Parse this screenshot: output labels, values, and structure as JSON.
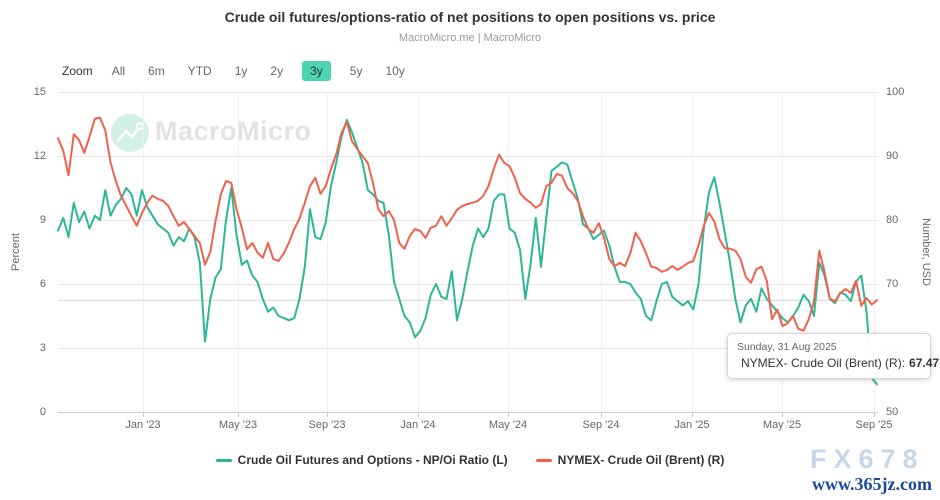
{
  "header": {
    "title": "Crude oil futures/options-ratio of net positions to open positions vs. price",
    "subtitle": "MacroMicro.me | MacroMicro"
  },
  "toolbar": {
    "zoom_label": "Zoom",
    "ranges": [
      "All",
      "6m",
      "YTD",
      "1y",
      "2y",
      "3y",
      "5y",
      "10y"
    ],
    "selected": "3y",
    "selected_bg": "#4ed3b2"
  },
  "watermark": {
    "text": "MacroMicro"
  },
  "chart_data": {
    "type": "line",
    "title": "Crude oil futures/options-ratio of net positions to open positions vs. price",
    "x_axis": {
      "tick_labels": [
        "Jan '23",
        "May '23",
        "Sep '23",
        "Jan '24",
        "May '24",
        "Sep '24",
        "Jan '25",
        "May '25",
        "Sep '25"
      ],
      "tick_x": [
        143,
        238,
        327,
        418,
        508,
        601,
        692,
        782,
        874
      ],
      "range_note": "weekly points, Sep 2022 - Aug 2025"
    },
    "y_left": {
      "label": "Percent",
      "range": [
        0,
        15
      ],
      "ticks": [
        0,
        3,
        6,
        9,
        12,
        15
      ],
      "tick_labels": [
        "15",
        "12",
        "9",
        "6",
        "3",
        "0"
      ]
    },
    "y_right": {
      "label": "Number, USD",
      "range": [
        50,
        100
      ],
      "ticks": [
        50,
        60,
        70,
        80,
        90,
        100
      ],
      "tick_labels": [
        "100",
        "90",
        "80",
        "70",
        "60",
        "50"
      ]
    },
    "crosshair_value_right": 67.47,
    "grid": true,
    "legend_position": "bottom",
    "series": [
      {
        "name": "Crude Oil Futures and Options - NP/Oi Ratio (L)",
        "axis": "left",
        "color": "#2eb794",
        "values": [
          8.5,
          9.1,
          8.2,
          9.8,
          8.9,
          9.4,
          8.6,
          9.2,
          9.0,
          10.4,
          9.2,
          9.7,
          10.0,
          10.5,
          10.2,
          9.2,
          10.4,
          9.6,
          9.2,
          8.8,
          8.6,
          8.4,
          7.8,
          8.2,
          8.0,
          8.6,
          8.2,
          7.0,
          3.3,
          5.3,
          6.3,
          6.7,
          9.0,
          10.5,
          8.3,
          6.9,
          7.1,
          6.4,
          6.1,
          5.3,
          4.7,
          4.9,
          4.5,
          4.4,
          4.3,
          4.4,
          5.3,
          6.8,
          9.5,
          8.2,
          8.1,
          8.9,
          10.6,
          11.7,
          12.9,
          13.7,
          13.1,
          12.4,
          11.7,
          10.4,
          10.2,
          9.9,
          9.8,
          8.3,
          6.1,
          5.3,
          4.5,
          4.2,
          3.5,
          3.8,
          4.4,
          5.5,
          6.0,
          5.4,
          5.3,
          6.6,
          4.3,
          5.3,
          6.6,
          7.8,
          8.6,
          8.2,
          8.6,
          9.9,
          10.2,
          10.2,
          8.6,
          8.4,
          7.6,
          5.3,
          6.9,
          9.1,
          6.8,
          9.1,
          11.3,
          11.5,
          11.7,
          11.6,
          10.8,
          10.0,
          8.8,
          8.6,
          8.1,
          8.3,
          8.5,
          7.8,
          6.8,
          6.1,
          6.1,
          6.0,
          5.6,
          5.3,
          4.5,
          4.3,
          5.2,
          6.0,
          6.1,
          5.4,
          5.2,
          5.0,
          5.2,
          4.8,
          6.0,
          8.6,
          10.3,
          11.0,
          9.8,
          8.4,
          7.0,
          5.3,
          4.2,
          5.0,
          5.3,
          4.7,
          5.8,
          5.3,
          5.0,
          4.7,
          4.4,
          4.2,
          4.5,
          4.9,
          5.5,
          5.2,
          4.5,
          7.0,
          6.4,
          5.3,
          5.1,
          5.6,
          5.5,
          5.2,
          6.1,
          6.4,
          4.7,
          1.6,
          1.3
        ]
      },
      {
        "name": "NYMEX- Crude Oil (Brent) (R)",
        "axis": "right",
        "color": "#f0624c",
        "values": [
          92.8,
          90.8,
          87.0,
          93.4,
          92.5,
          90.5,
          93.0,
          95.8,
          96.0,
          94.0,
          89.0,
          86.1,
          83.8,
          82.2,
          80.6,
          79.1,
          81.1,
          82.7,
          83.8,
          83.3,
          83.0,
          82.2,
          80.6,
          79.1,
          79.7,
          78.6,
          77.5,
          76.4,
          73.0,
          75.0,
          79.8,
          84.0,
          86.1,
          85.8,
          81.7,
          78.8,
          75.4,
          76.4,
          74.9,
          74.1,
          76.4,
          73.9,
          73.6,
          74.8,
          76.5,
          78.6,
          80.2,
          82.7,
          85.3,
          86.6,
          84.1,
          85.3,
          88.0,
          90.3,
          93.6,
          95.3,
          92.3,
          91.1,
          90.0,
          88.9,
          85.8,
          81.7,
          80.6,
          81.4,
          80.0,
          76.4,
          75.5,
          77.5,
          78.6,
          78.3,
          77.2,
          78.8,
          79.1,
          80.6,
          79.1,
          80.3,
          81.6,
          82.2,
          82.5,
          82.7,
          83.0,
          83.8,
          85.3,
          88.0,
          90.2,
          88.9,
          88.4,
          86.6,
          84.2,
          83.3,
          82.7,
          81.9,
          82.5,
          85.3,
          85.8,
          87.2,
          86.9,
          85.0,
          84.2,
          83.0,
          80.6,
          78.6,
          78.0,
          79.5,
          77.2,
          73.9,
          72.8,
          73.3,
          72.8,
          74.8,
          78.0,
          76.7,
          74.8,
          72.7,
          72.5,
          71.9,
          72.2,
          72.8,
          72.2,
          72.7,
          73.3,
          73.6,
          76.0,
          79.1,
          81.1,
          79.8,
          77.0,
          75.6,
          75.5,
          75.2,
          73.9,
          71.1,
          70.2,
          72.3,
          72.7,
          70.5,
          64.5,
          66.0,
          63.4,
          63.9,
          65.0,
          63.0,
          62.7,
          64.5,
          67.3,
          75.2,
          71.9,
          67.7,
          67.3,
          68.6,
          69.2,
          68.6,
          70.5,
          66.6,
          67.8,
          66.8,
          67.47
        ]
      }
    ]
  },
  "legend": [
    {
      "label": "Crude Oil Futures and Options - NP/Oi Ratio (L)",
      "color": "#2eb794"
    },
    {
      "label": "NYMEX- Crude Oil (Brent) (R)",
      "color": "#f0624c"
    }
  ],
  "tooltip": {
    "date": "Sunday, 31 Aug 2025",
    "series_label": "NYMEX- Crude Oil (Brent) (R):",
    "value": "67.47",
    "dot_color": "#f0624c"
  },
  "footer_watermark": {
    "line1": "FX678",
    "line2": "www.365jz.com"
  }
}
